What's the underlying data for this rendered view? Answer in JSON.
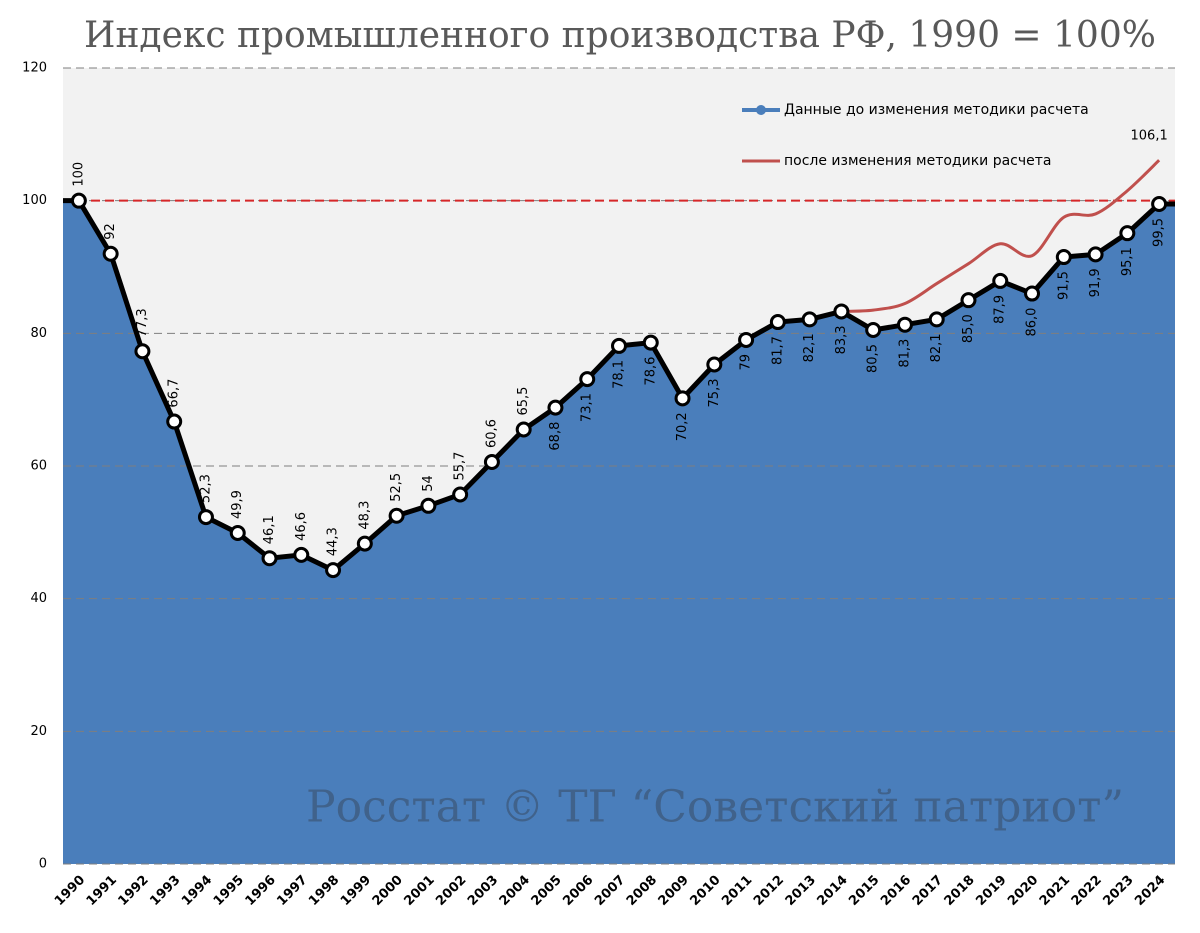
{
  "chart_data": {
    "type": "area-line",
    "title": "Индекс промышленного производства РФ,  1990 = 100%",
    "annotation": "Росстат © ТГ “Советский патриот”",
    "categories": [
      "1990",
      "1991",
      "1992",
      "1993",
      "1994",
      "1995",
      "1996",
      "1997",
      "1998",
      "1999",
      "2000",
      "2001",
      "2002",
      "2003",
      "2004",
      "2005",
      "2006",
      "2007",
      "2008",
      "2009",
      "2010",
      "2011",
      "2012",
      "2013",
      "2014",
      "2015",
      "2016",
      "2017",
      "2018",
      "2019",
      "2020",
      "2021",
      "2022",
      "2023",
      "2024"
    ],
    "series": [
      {
        "name": "Данные до изменения методики расчета",
        "color": "#4a7ebb",
        "values": [
          100,
          92,
          77.3,
          66.7,
          52.3,
          49.9,
          46.1,
          46.6,
          44.3,
          48.3,
          52.5,
          54,
          55.7,
          60.6,
          65.5,
          68.8,
          73.1,
          78.1,
          78.6,
          70.2,
          75.3,
          79,
          81.7,
          82.1,
          83.3,
          80.5,
          81.3,
          82.1,
          85.0,
          87.9,
          86.0,
          91.5,
          91.9,
          95.1,
          99.5
        ],
        "value_labels": [
          "100",
          "92",
          "77,3",
          "66,7",
          "52,3",
          "49,9",
          "46,1",
          "46,6",
          "44,3",
          "48,3",
          "52,5",
          "54",
          "55,7",
          "60,6",
          "65,5",
          "68,8",
          "73,1",
          "78,1",
          "78,6",
          "70,2",
          "75,3",
          "79",
          "81,7",
          "82,1",
          "83,3",
          "80,5",
          "81,3",
          "82,1",
          "85,0",
          "87,9",
          "86,0",
          "91,5",
          "91,9",
          "95,1",
          "99,5"
        ]
      },
      {
        "name": "после изменения методики расчета",
        "color": "#c0504d",
        "values": [
          null,
          null,
          null,
          null,
          null,
          null,
          null,
          null,
          null,
          null,
          null,
          null,
          null,
          null,
          null,
          null,
          null,
          null,
          null,
          null,
          null,
          null,
          null,
          null,
          83.3,
          83.5,
          84.5,
          87.5,
          90.5,
          93.5,
          91.7,
          97.5,
          98,
          101.5,
          106.1
        ],
        "value_labels": [
          null,
          null,
          null,
          null,
          null,
          null,
          null,
          null,
          null,
          null,
          null,
          null,
          null,
          null,
          null,
          null,
          null,
          null,
          null,
          null,
          null,
          null,
          null,
          null,
          null,
          null,
          null,
          null,
          null,
          null,
          null,
          null,
          null,
          null,
          "106,1"
        ]
      }
    ],
    "reference_line": {
      "value": 100,
      "color": "#d62728"
    },
    "ylim": [
      0,
      120
    ],
    "yticks": [
      0,
      20,
      40,
      60,
      80,
      100,
      120
    ],
    "grid": true,
    "legend": "upper right"
  }
}
